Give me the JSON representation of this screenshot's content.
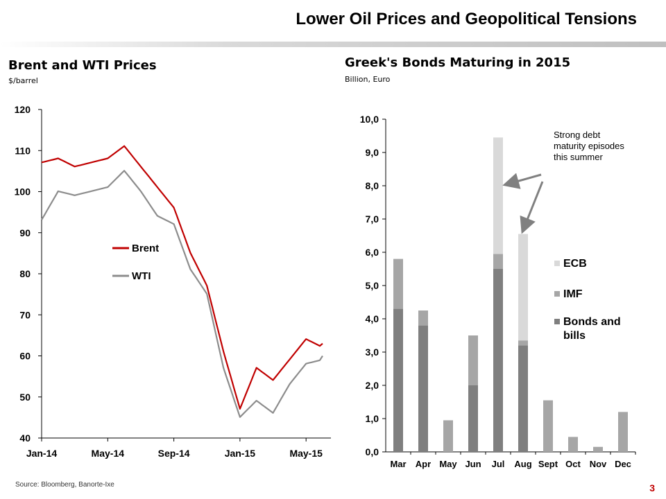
{
  "page": {
    "title": "Lower Oil Prices and Geopolitical Tensions",
    "source": "Source: Bloomberg, Banorte-Ixe",
    "page_number": "3"
  },
  "colors": {
    "brent": "#c00000",
    "wti": "#8c8c8c",
    "bonds": "#7f7f7f",
    "imf": "#a6a6a6",
    "ecb": "#d9d9d9",
    "arrow": "#808080",
    "page_number": "#c00000"
  },
  "chart_data": [
    {
      "type": "line",
      "title": "Brent and WTI Prices",
      "subtitle": "$/barrel",
      "xlabel": "",
      "ylabel": "",
      "x_tick_labels": [
        "Jan-14",
        "May-14",
        "Sep-14",
        "Jan-15",
        "May-15"
      ],
      "y_tick_labels": [
        "40",
        "50",
        "60",
        "70",
        "80",
        "90",
        "100",
        "110",
        "120"
      ],
      "ylim": [
        40,
        120
      ],
      "grid": false,
      "legend_position": "center-left",
      "x": [
        "2014-01",
        "2014-02",
        "2014-03",
        "2014-04",
        "2014-05",
        "2014-06",
        "2014-07",
        "2014-08",
        "2014-09",
        "2014-10",
        "2014-11",
        "2014-12",
        "2015-01",
        "2015-02",
        "2015-03",
        "2015-04",
        "2015-05",
        "2015-06"
      ],
      "series": [
        {
          "name": "Brent",
          "color": "#c00000",
          "values": [
            108,
            109,
            107,
            108,
            109,
            112,
            107,
            102,
            97,
            86,
            78,
            62,
            48,
            58,
            55,
            60,
            65,
            63
          ]
        },
        {
          "name": "WTI",
          "color": "#8c8c8c",
          "values": [
            94,
            101,
            100,
            101,
            102,
            106,
            101,
            95,
            93,
            82,
            76,
            58,
            46,
            50,
            47,
            54,
            59,
            60
          ]
        }
      ]
    },
    {
      "type": "bar",
      "stacked": true,
      "title": "Greek's Bonds Maturing in 2015",
      "subtitle": "Billion, Euro",
      "xlabel": "",
      "ylabel": "",
      "categories": [
        "Mar",
        "Apr",
        "May",
        "Jun",
        "Jul",
        "Aug",
        "Sept",
        "Oct",
        "Nov",
        "Dec"
      ],
      "y_tick_labels": [
        "0,0",
        "1,0",
        "2,0",
        "3,0",
        "4,0",
        "5,0",
        "6,0",
        "7,0",
        "8,0",
        "9,0",
        "10,0"
      ],
      "ylim": [
        0,
        10
      ],
      "grid": false,
      "legend_position": "right",
      "series": [
        {
          "name": "Bonds and bills",
          "color": "#7f7f7f",
          "values": [
            4.3,
            3.8,
            0,
            2.0,
            5.5,
            3.2,
            0,
            0,
            0,
            0
          ]
        },
        {
          "name": "IMF",
          "color": "#a6a6a6",
          "values": [
            1.5,
            0.45,
            0.95,
            1.5,
            0.45,
            0.15,
            1.55,
            0.45,
            0.15,
            1.2
          ]
        },
        {
          "name": "ECB",
          "color": "#d9d9d9",
          "values": [
            0,
            0,
            0,
            0,
            3.5,
            3.2,
            0,
            0,
            0,
            0
          ]
        }
      ],
      "annotation": "Strong debt maturity episodes this summer"
    }
  ]
}
